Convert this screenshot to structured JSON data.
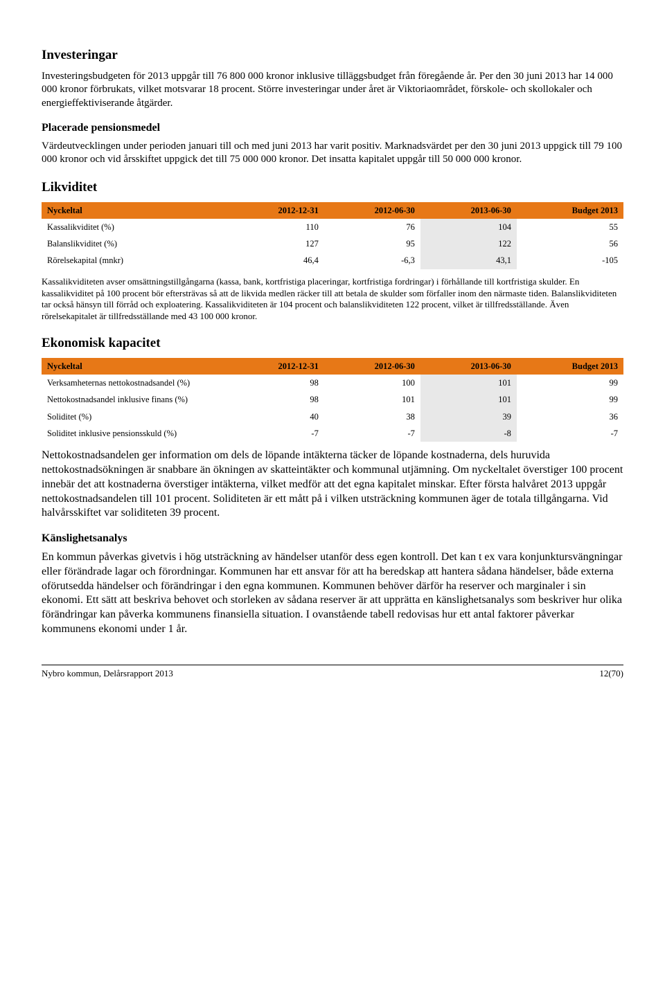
{
  "sections": {
    "investeringar": {
      "title": "Investeringar",
      "body": "Investeringsbudgeten för 2013 uppgår till 76 800 000 kronor inklusive tilläggsbudget från föregående år. Per den 30 juni 2013 har 14 000 000 kronor förbrukats, vilket motsvarar 18 procent. Större investeringar under året är Viktoriaområdet, förskole- och skollokaler och energieffektiviserande åtgärder."
    },
    "pension": {
      "title": "Placerade pensionsmedel",
      "body": "Värdeutvecklingen under perioden januari till och med juni 2013 har varit positiv. Marknadsvärdet per den 30 juni 2013 uppgick till 79 100 000 kronor och vid årsskiftet uppgick det till 75 000 000 kronor. Det insatta kapitalet uppgår till 50 000 000 kronor."
    },
    "likviditet": {
      "title": "Likviditet",
      "after": "Kassalikviditeten avser omsättningstillgångarna (kassa, bank, kortfristiga placeringar, kortfristiga fordringar) i förhållande till kortfristiga skulder. En kassalikviditet på 100 procent bör eftersträvas så att de likvida medlen räcker till att betala de skulder som förfaller inom den närmaste tiden. Balanslikviditeten tar också hänsyn till förråd och exploatering. Kassalikviditeten är 104 procent och balanslikviditeten 122 procent, vilket är tillfredsställande. Även rörelsekapitalet är tillfredsställande med 43 100 000 kronor."
    },
    "ekonomisk": {
      "title": "Ekonomisk kapacitet",
      "after": "Nettokostnadsandelen ger information om dels de löpande intäkterna täcker de löpande kostnaderna, dels huruvida nettokostnadsökningen är snabbare än ökningen av skatteintäkter och kommunal utjämning. Om nyckeltalet överstiger 100 procent innebär det att kostnaderna överstiger intäkterna, vilket medför att det egna kapitalet minskar. Efter första halvåret 2013 uppgår nettokostnadsandelen till 101 procent. Soliditeten är ett mått på i vilken utsträckning kommunen äger de totala tillgångarna. Vid halvårsskiftet var soliditeten 39 procent."
    },
    "kanslighet": {
      "title": "Känslighetsanalys",
      "body": "En kommun påverkas givetvis i hög utsträckning av händelser utanför dess egen kontroll. Det kan t ex vara konjunktursvängningar eller förändrade lagar och förordningar. Kommunen har ett ansvar för att ha beredskap att hantera sådana händelser, både externa oförutsedda händelser och förändringar i den egna kommunen. Kommunen behöver därför ha reserver och marginaler i sin ekonomi. Ett sätt att beskriva behovet och storleken av sådana reserver är att upprätta en känslighetsanalys som beskriver hur olika förändringar kan påverka kommunens finansiella situation. I ovanstående tabell redovisas hur ett antal faktorer påverkar kommunens ekonomi under 1 år."
    }
  },
  "likviditet_table": {
    "header_bg": "#e77817",
    "highlight_col": 3,
    "columns": [
      "Nyckeltal",
      "2012-12-31",
      "2012-06-30",
      "2013-06-30",
      "Budget 2013"
    ],
    "rows": [
      [
        "Kassalikviditet (%)",
        "110",
        "76",
        "104",
        "55"
      ],
      [
        "Balanslikviditet (%)",
        "127",
        "95",
        "122",
        "56"
      ],
      [
        "Rörelsekapital (mnkr)",
        "46,4",
        "-6,3",
        "43,1",
        "-105"
      ]
    ]
  },
  "ekonomisk_table": {
    "header_bg": "#e77817",
    "highlight_col": 3,
    "columns": [
      "Nyckeltal",
      "2012-12-31",
      "2012-06-30",
      "2013-06-30",
      "Budget 2013"
    ],
    "rows": [
      [
        "Verksamheternas nettokostnadsandel (%)",
        "98",
        "100",
        "101",
        "99"
      ],
      [
        "Nettokostnadsandel inklusive finans (%)",
        "98",
        "101",
        "101",
        "99"
      ],
      [
        "Soliditet (%)",
        "40",
        "38",
        "39",
        "36"
      ],
      [
        "Soliditet inklusive pensionsskuld (%)",
        "-7",
        "-7",
        "-8",
        "-7"
      ]
    ]
  },
  "footer": {
    "left": "Nybro kommun, Delårsrapport 2013",
    "right": "12(70)"
  }
}
